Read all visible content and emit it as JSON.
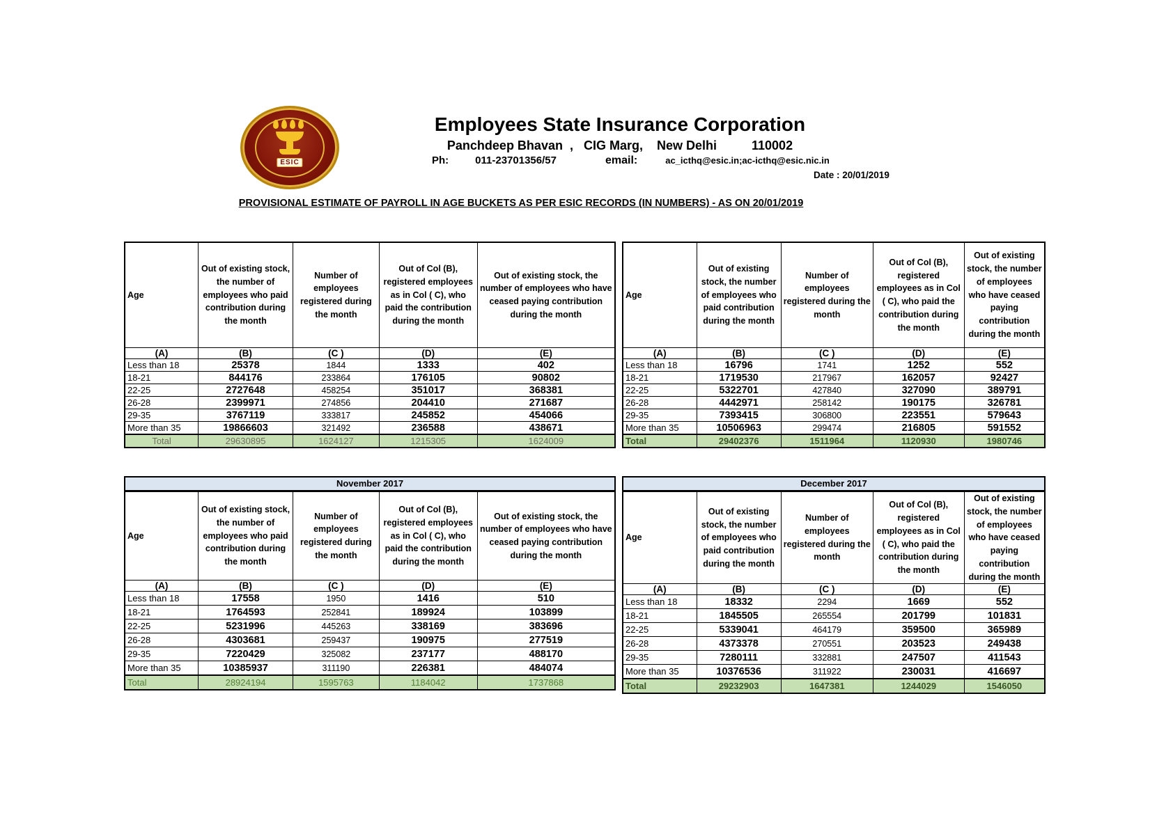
{
  "header": {
    "org_name": "Employees State Insurance Corporation",
    "address_line": "Panchdeep Bhavan  ,   CIG Marg,    New Delhi          110002",
    "phone_label": "Ph:",
    "phone_value": "011-23701356/57",
    "email_label": "email:",
    "email_value": "ac_icthq@esic.in;ac-icthq@esic.nic.in",
    "date_text": "Date : 20/01/2019",
    "logo_label": "ESIC"
  },
  "title": "PROVISIONAL ESTIMATE OF PAYROLL IN AGE BUCKETS AS PER ESIC RECORDS (IN NUMBERS) - AS ON 20/01/2019",
  "col_headers": [
    "Age",
    "Out of existing stock, the number of employees who paid contribution during the month",
    "Number of employees registered during the month",
    "Out of Col (B), registered employees as in Col ( C), who paid the contribution during the month",
    "Out of existing stock, the number of  employees  who have ceased paying contribution during the month"
  ],
  "col_letters": [
    "(A)",
    "(B)",
    "(C )",
    "(D)",
    "(E)"
  ],
  "colors": {
    "total_row_bg": "#c6e0b4",
    "month_band_bg": "#dbe5f1",
    "total_dark_green": "#375623",
    "total_green": "#538135",
    "total_gray": "#6f6f5f"
  },
  "tables": [
    {
      "id": "current-left",
      "month": "",
      "rows": [
        [
          "Less than 18",
          "25378",
          "1844",
          "1333",
          "402"
        ],
        [
          "18-21",
          "844176",
          "233864",
          "176105",
          "90802"
        ],
        [
          "22-25",
          "2727648",
          "458254",
          "351017",
          "368381"
        ],
        [
          "26-28",
          "2399971",
          "274856",
          "204410",
          "271687"
        ],
        [
          "29-35",
          "3767119",
          "333817",
          "245852",
          "454066"
        ],
        [
          "More than 35",
          "19866603",
          "321492",
          "236588",
          "438671"
        ]
      ],
      "total": [
        "Total",
        "29630895",
        "1624127",
        "1215305",
        "1624009"
      ],
      "total_bold": false,
      "total_color_key": "total_gray",
      "total_label_align": "center"
    },
    {
      "id": "current-right",
      "month": "",
      "rows": [
        [
          "Less than 18",
          "16796",
          "1741",
          "1252",
          "552"
        ],
        [
          "18-21",
          "1719530",
          "217967",
          "162057",
          "92427"
        ],
        [
          "22-25",
          "5322701",
          "427840",
          "327090",
          "389791"
        ],
        [
          "26-28",
          "4442971",
          "258142",
          "190175",
          "326781"
        ],
        [
          "29-35",
          "7393415",
          "306800",
          "223551",
          "579643"
        ],
        [
          "More than 35",
          "10506963",
          "299474",
          "216805",
          "591552"
        ]
      ],
      "total": [
        "Total",
        "29402376",
        "1511964",
        "1120930",
        "1980746"
      ],
      "total_bold": true,
      "total_color_key": "total_dark_green",
      "total_label_align": "left"
    },
    {
      "id": "november-2017",
      "month": "November 2017",
      "rows": [
        [
          "Less than 18",
          "17558",
          "1950",
          "1416",
          "510"
        ],
        [
          "18-21",
          "1764593",
          "252841",
          "189924",
          "103899"
        ],
        [
          "22-25",
          "5231996",
          "445263",
          "338169",
          "383696"
        ],
        [
          "26-28",
          "4303681",
          "259437",
          "190975",
          "277519"
        ],
        [
          "29-35",
          "7220429",
          "325082",
          "237177",
          "488170"
        ],
        [
          "More than 35",
          "10385937",
          "311190",
          "226381",
          "484074"
        ]
      ],
      "total": [
        "Total",
        "28924194",
        "1595763",
        "1184042",
        "1737868"
      ],
      "total_bold": false,
      "total_color_key": "total_green",
      "total_label_align": "left"
    },
    {
      "id": "december-2017",
      "month": "December 2017",
      "rows": [
        [
          "Less than 18",
          "18332",
          "2294",
          "1669",
          "552"
        ],
        [
          "18-21",
          "1845505",
          "265554",
          "201799",
          "101831"
        ],
        [
          "22-25",
          "5339041",
          "464179",
          "359500",
          "365989"
        ],
        [
          "26-28",
          "4373378",
          "270551",
          "203523",
          "249438"
        ],
        [
          "29-35",
          "7280111",
          "332881",
          "247507",
          "411543"
        ],
        [
          "More than 35",
          "10376536",
          "311922",
          "230031",
          "416697"
        ]
      ],
      "total": [
        "Total",
        "29232903",
        "1647381",
        "1244029",
        "1546050"
      ],
      "total_bold": true,
      "total_color_key": "total_dark_green",
      "total_label_align": "left"
    }
  ]
}
